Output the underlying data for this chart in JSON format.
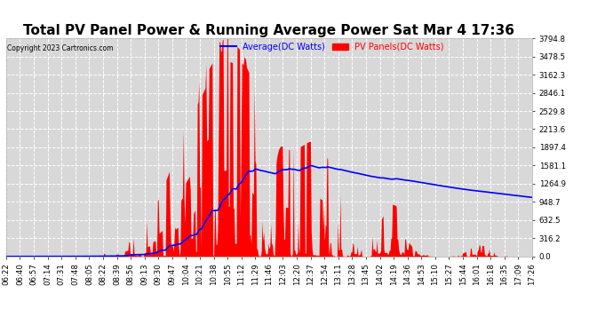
{
  "title": "Total PV Panel Power & Running Average Power Sat Mar 4 17:36",
  "copyright": "Copyright 2023 Cartronics.com",
  "legend_avg": "Average(DC Watts)",
  "legend_pv": "PV Panels(DC Watts)",
  "ylabel_values": [
    0.0,
    316.2,
    632.5,
    948.7,
    1264.9,
    1581.1,
    1897.4,
    2213.6,
    2529.8,
    2846.1,
    3162.3,
    3478.5,
    3794.8
  ],
  "ylim": [
    0,
    3794.8
  ],
  "bg_color": "#ffffff",
  "plot_bg_color": "#d8d8d8",
  "grid_color": "#ffffff",
  "bar_color": "#ff0000",
  "avg_line_color": "#0000ff",
  "title_fontsize": 11,
  "tick_fontsize": 6.2,
  "xtick_labels": [
    "06:22",
    "06:40",
    "06:57",
    "07:14",
    "07:31",
    "07:48",
    "08:05",
    "08:22",
    "08:39",
    "08:56",
    "09:13",
    "09:30",
    "09:47",
    "10:04",
    "10:21",
    "10:38",
    "10:55",
    "11:12",
    "11:29",
    "11:46",
    "12:03",
    "12:20",
    "12:37",
    "12:54",
    "13:11",
    "13:28",
    "13:45",
    "14:02",
    "14:19",
    "14:36",
    "14:53",
    "15:10",
    "15:27",
    "15:44",
    "16:01",
    "16:18",
    "16:35",
    "17:09",
    "17:26"
  ]
}
